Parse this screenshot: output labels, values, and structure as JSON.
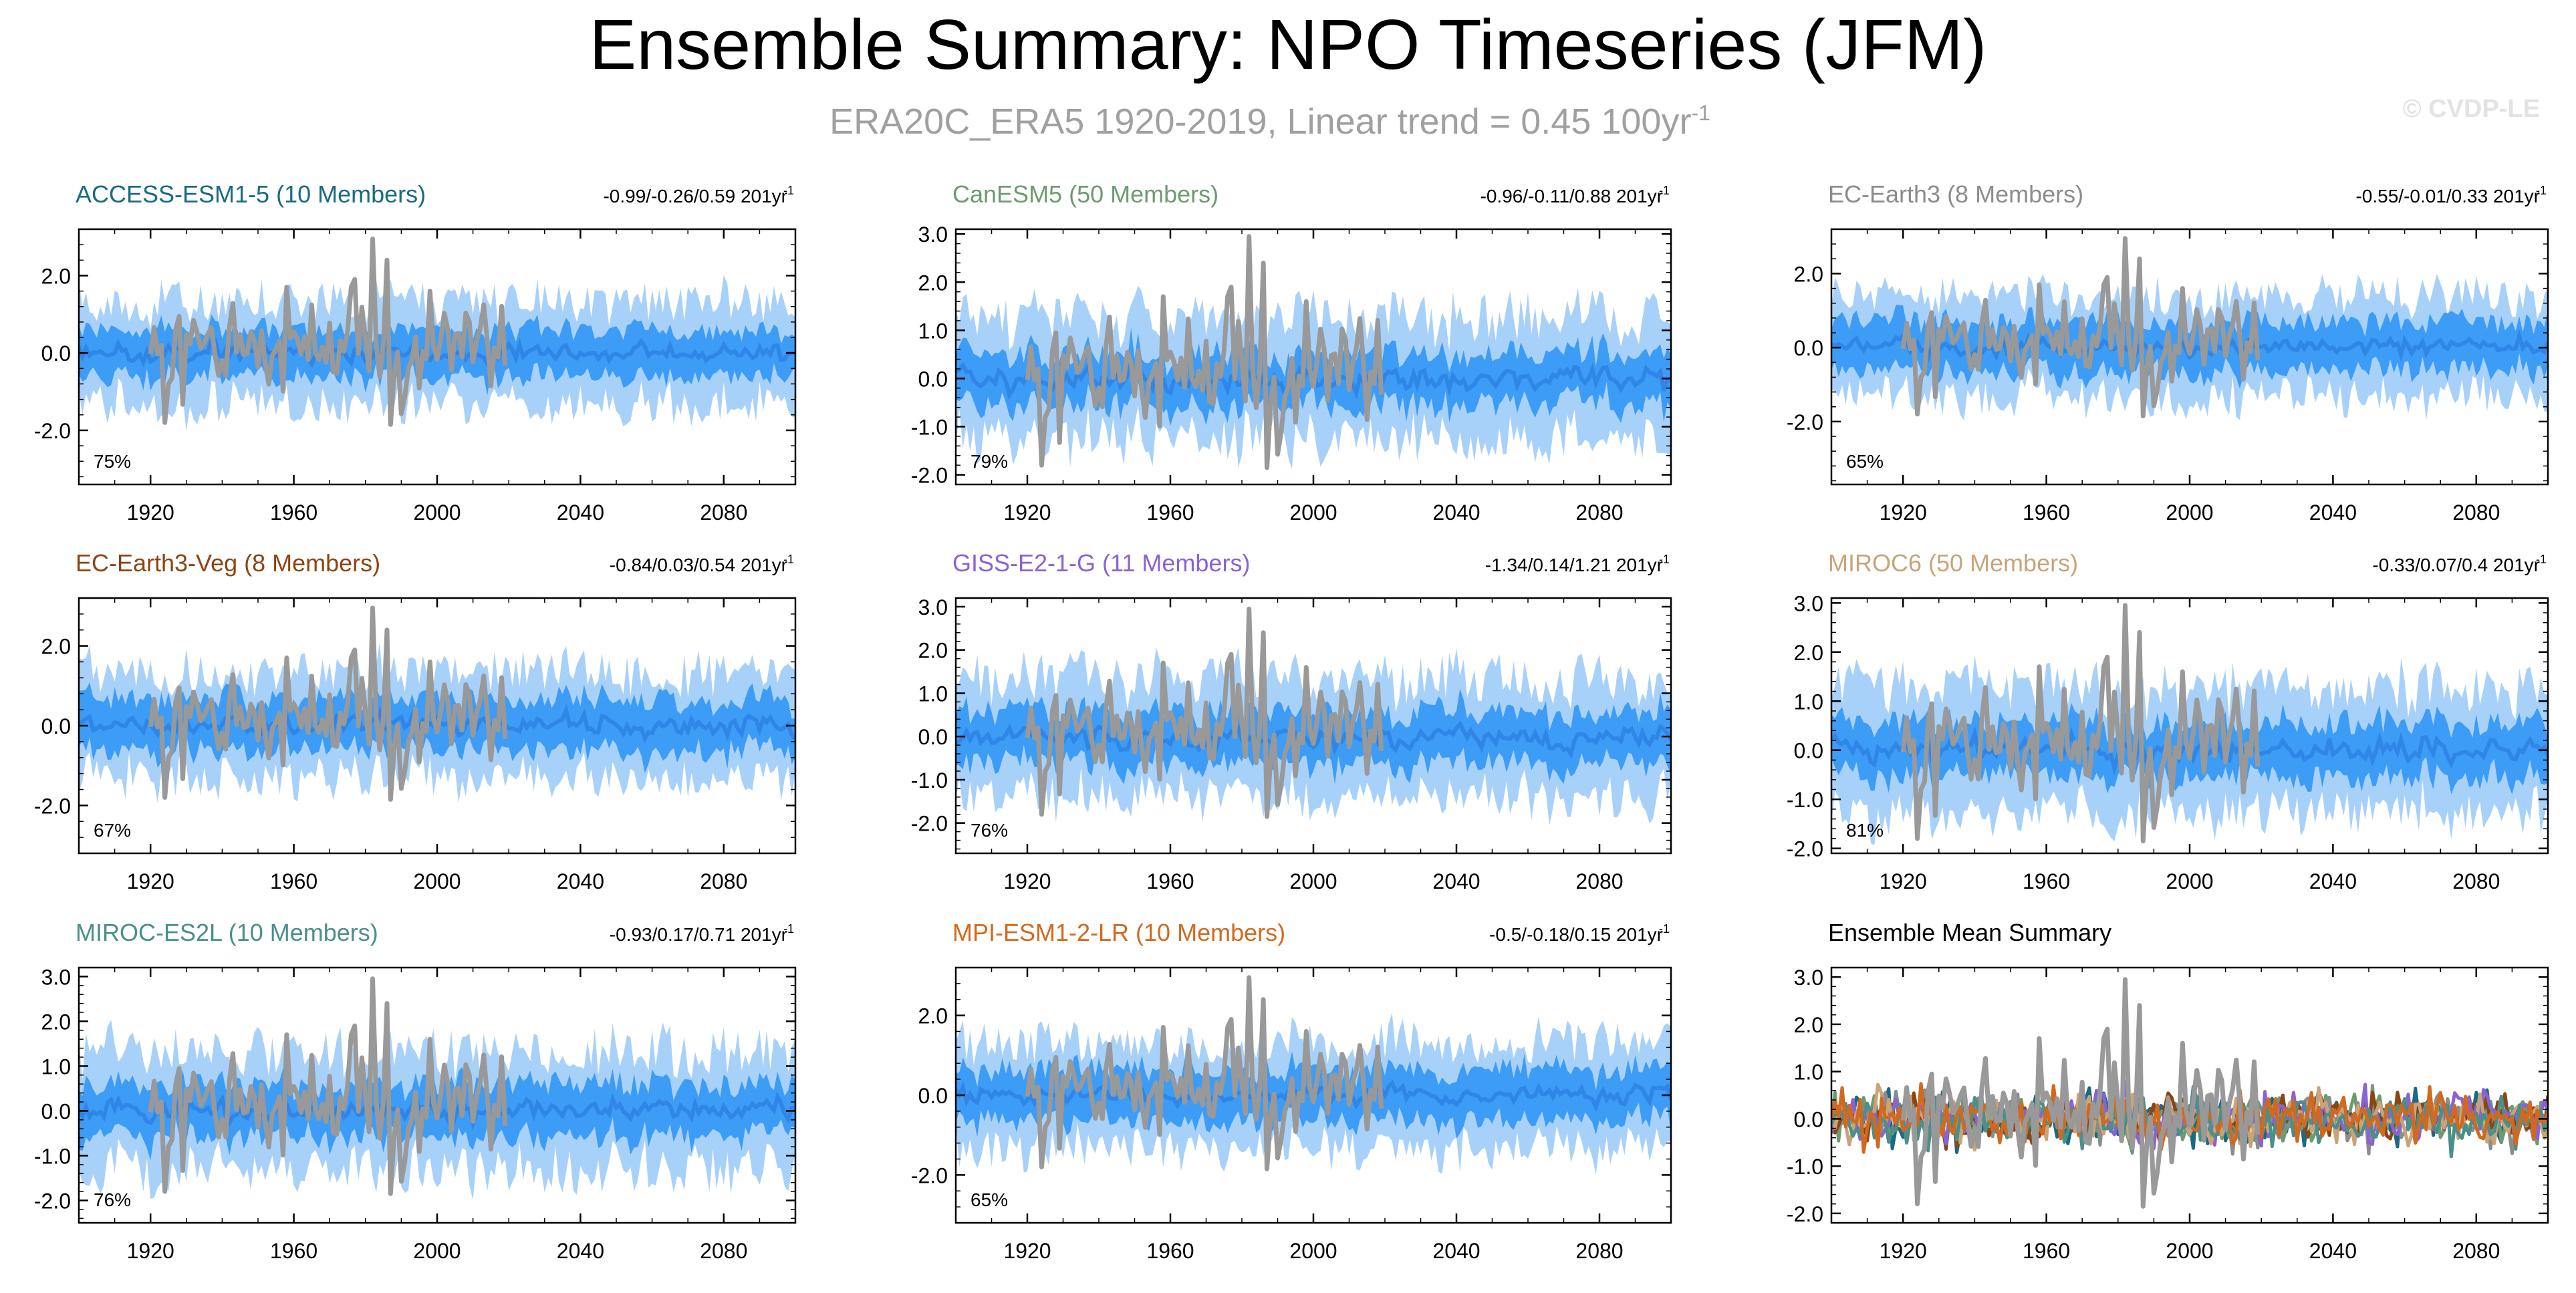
{
  "figure": {
    "title": "Ensemble Summary: NPO Timeseries (JFM)",
    "subtitle_main": "ERA20C_ERA5 1920-2019, Linear trend = 0.45 100yr",
    "subtitle_sup": "-1",
    "watermark": "© CVDP-LE"
  },
  "colors": {
    "band_outer": "#a8d1fa",
    "band_inner": "#3d9cf5",
    "ensemble_mean": "#2f86e6",
    "observations": "#999999",
    "axis": "#000000"
  },
  "chart_data": [
    {
      "type": "line",
      "title": "ACCESS-ESM1-5 (10 Members)",
      "title_color": "#1a6a82",
      "trend_text": "-0.99/-0.26/0.59 201yr",
      "trend_sup": "-1",
      "percent_label": "75%",
      "xlim": [
        1900,
        2100
      ],
      "ylim": [
        -3.4,
        3.2
      ],
      "yticks": [
        -2.0,
        0.0,
        2.0
      ],
      "ytick_labels": [
        "-2.0",
        "0.0",
        "2.0"
      ],
      "xticks": [
        1920,
        1960,
        2000,
        2040,
        2080
      ],
      "xtick_labels": [
        "1920",
        "1960",
        "2000",
        "2040",
        "2080"
      ],
      "band_outer_halfwidth": 1.35,
      "band_inner_halfwidth": 0.7,
      "series": [
        {
          "values_desc": "ensemble mean ± spread, 1900-2100"
        },
        {
          "values_desc": "observations 1920-2019"
        }
      ]
    },
    {
      "type": "line",
      "title": "CanESM5 (50 Members)",
      "title_color": "#6e9a72",
      "trend_text": "-0.96/-0.11/0.88 201yr",
      "trend_sup": "-1",
      "percent_label": "79%",
      "xlim": [
        1900,
        2100
      ],
      "ylim": [
        -2.2,
        3.1
      ],
      "yticks": [
        -2.0,
        -1.0,
        0.0,
        1.0,
        2.0,
        3.0
      ],
      "ytick_labels": [
        "-2.0",
        "-1.0",
        "0.0",
        "1.0",
        "2.0",
        "3.0"
      ],
      "xticks": [
        1920,
        1960,
        2000,
        2040,
        2080
      ],
      "xtick_labels": [
        "1920",
        "1960",
        "2000",
        "2040",
        "2080"
      ],
      "band_outer_halfwidth": 1.3,
      "band_inner_halfwidth": 0.6
    },
    {
      "type": "line",
      "title": "EC-Earth3 (8 Members)",
      "title_color": "#8c8c8c",
      "trend_text": "-0.55/-0.01/0.33 201yr",
      "trend_sup": "-1",
      "percent_label": "65%",
      "xlim": [
        1900,
        2100
      ],
      "ylim": [
        -3.7,
        3.2
      ],
      "yticks": [
        -2.0,
        0.0,
        2.0
      ],
      "ytick_labels": [
        "-2.0",
        "0.0",
        "2.0"
      ],
      "xticks": [
        1920,
        1960,
        2000,
        2040,
        2080
      ],
      "xtick_labels": [
        "1920",
        "1960",
        "2000",
        "2040",
        "2080"
      ],
      "band_outer_halfwidth": 1.4,
      "band_inner_halfwidth": 0.8
    },
    {
      "type": "line",
      "title": "EC-Earth3-Veg (8 Members)",
      "title_color": "#8b4513",
      "trend_text": "-0.84/0.03/0.54 201yr",
      "trend_sup": "-1",
      "percent_label": "67%",
      "xlim": [
        1900,
        2100
      ],
      "ylim": [
        -3.2,
        3.2
      ],
      "yticks": [
        -2.0,
        0.0,
        2.0
      ],
      "ytick_labels": [
        "-2.0",
        "0.0",
        "2.0"
      ],
      "xticks": [
        1920,
        1960,
        2000,
        2040,
        2080
      ],
      "xtick_labels": [
        "1920",
        "1960",
        "2000",
        "2040",
        "2080"
      ],
      "band_outer_halfwidth": 1.35,
      "band_inner_halfwidth": 0.75
    },
    {
      "type": "line",
      "title": "GISS-E2-1-G (11 Members)",
      "title_color": "#8a63d2",
      "trend_text": "-1.34/0.14/1.21 201yr",
      "trend_sup": "-1",
      "percent_label": "76%",
      "xlim": [
        1900,
        2100
      ],
      "ylim": [
        -2.7,
        3.2
      ],
      "yticks": [
        -2.0,
        -1.0,
        0.0,
        1.0,
        2.0,
        3.0
      ],
      "ytick_labels": [
        "-2.0",
        "-1.0",
        "0.0",
        "1.0",
        "2.0",
        "3.0"
      ],
      "xticks": [
        1920,
        1960,
        2000,
        2040,
        2080
      ],
      "xtick_labels": [
        "1920",
        "1960",
        "2000",
        "2040",
        "2080"
      ],
      "band_outer_halfwidth": 1.4,
      "band_inner_halfwidth": 0.7
    },
    {
      "type": "line",
      "title": "MIROC6 (50 Members)",
      "title_color": "#c8a478",
      "trend_text": "-0.33/0.07/0.4 201yr",
      "trend_sup": "-1",
      "percent_label": "81%",
      "xlim": [
        1900,
        2100
      ],
      "ylim": [
        -2.1,
        3.1
      ],
      "yticks": [
        -2.0,
        -1.0,
        0.0,
        1.0,
        2.0,
        3.0
      ],
      "ytick_labels": [
        "-2.0",
        "-1.0",
        "0.0",
        "1.0",
        "2.0",
        "3.0"
      ],
      "xticks": [
        1920,
        1960,
        2000,
        2040,
        2080
      ],
      "xtick_labels": [
        "1920",
        "1960",
        "2000",
        "2040",
        "2080"
      ],
      "band_outer_halfwidth": 1.3,
      "band_inner_halfwidth": 0.65
    },
    {
      "type": "line",
      "title": "MIROC-ES2L (10 Members)",
      "title_color": "#4a8f8a",
      "trend_text": "-0.93/0.17/0.71 201yr",
      "trend_sup": "-1",
      "percent_label": "76%",
      "xlim": [
        1900,
        2100
      ],
      "ylim": [
        -2.5,
        3.2
      ],
      "yticks": [
        -2.0,
        -1.0,
        0.0,
        1.0,
        2.0,
        3.0
      ],
      "ytick_labels": [
        "-2.0",
        "-1.0",
        "0.0",
        "1.0",
        "2.0",
        "3.0"
      ],
      "xticks": [
        1920,
        1960,
        2000,
        2040,
        2080
      ],
      "xtick_labels": [
        "1920",
        "1960",
        "2000",
        "2040",
        "2080"
      ],
      "band_outer_halfwidth": 1.35,
      "band_inner_halfwidth": 0.7
    },
    {
      "type": "line",
      "title": "MPI-ESM1-2-LR (10 Members)",
      "title_color": "#d2691e",
      "trend_text": "-0.5/-0.18/0.15 201yr",
      "trend_sup": "-1",
      "percent_label": "65%",
      "xlim": [
        1900,
        2100
      ],
      "ylim": [
        -3.2,
        3.2
      ],
      "yticks": [
        -2.0,
        0.0,
        2.0
      ],
      "ytick_labels": [
        "-2.0",
        "0.0",
        "2.0"
      ],
      "xticks": [
        1920,
        1960,
        2000,
        2040,
        2080
      ],
      "xtick_labels": [
        "1920",
        "1960",
        "2000",
        "2040",
        "2080"
      ],
      "band_outer_halfwidth": 1.35,
      "band_inner_halfwidth": 0.75
    },
    {
      "type": "line",
      "title": "Ensemble Mean Summary",
      "title_color": "#000000",
      "trend_text": "",
      "trend_sup": "",
      "percent_label": "",
      "xlim": [
        1900,
        2100
      ],
      "ylim": [
        -2.2,
        3.2
      ],
      "yticks": [
        -2.0,
        -1.0,
        0.0,
        1.0,
        2.0,
        3.0
      ],
      "ytick_labels": [
        "-2.0",
        "-1.0",
        "0.0",
        "1.0",
        "2.0",
        "3.0"
      ],
      "xticks": [
        1920,
        1960,
        2000,
        2040,
        2080
      ],
      "xtick_labels": [
        "1920",
        "1960",
        "2000",
        "2040",
        "2080"
      ],
      "summary": true,
      "series_colors": [
        "#1a6a82",
        "#6e9a72",
        "#8c8c8c",
        "#8b4513",
        "#8a63d2",
        "#c8a478",
        "#4a8f8a",
        "#d2691e"
      ]
    }
  ]
}
